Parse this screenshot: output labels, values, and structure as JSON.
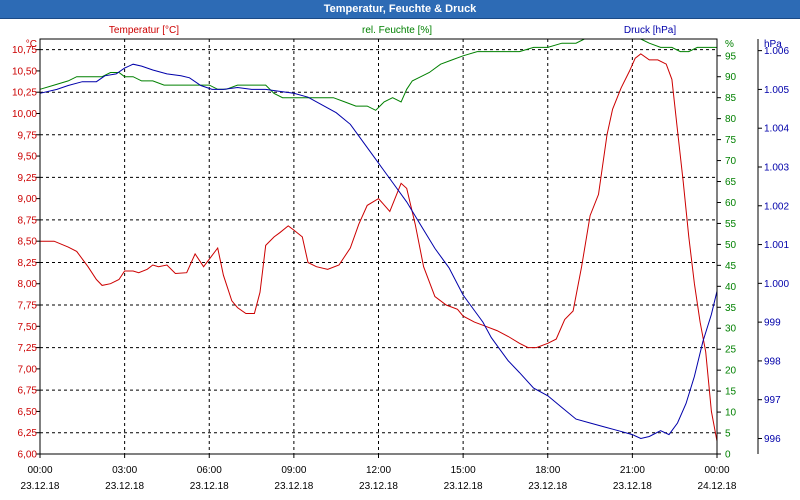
{
  "window": {
    "title": "Temperatur, Feuchte & Druck"
  },
  "colors": {
    "temperature": "#cc0000",
    "humidity": "#008000",
    "pressure": "#0000aa",
    "grid": "#000000",
    "title_bar": "#2d6bb5"
  },
  "chart_data": {
    "type": "line",
    "title": "Temperatur, Feuchte & Druck",
    "grid": true,
    "x": {
      "ticks": [
        {
          "time": "00:00",
          "date": "23.12.18"
        },
        {
          "time": "03:00",
          "date": "23.12.18"
        },
        {
          "time": "06:00",
          "date": "23.12.18"
        },
        {
          "time": "09:00",
          "date": "23.12.18"
        },
        {
          "time": "12:00",
          "date": "23.12.18"
        },
        {
          "time": "15:00",
          "date": "23.12.18"
        },
        {
          "time": "18:00",
          "date": "23.12.18"
        },
        {
          "time": "21:00",
          "date": "23.12.18"
        },
        {
          "time": "00:00",
          "date": "24.12.18"
        }
      ],
      "range_hours": [
        0,
        24
      ]
    },
    "axes": {
      "left": {
        "label": "Temperatur [°C]",
        "unit": "°C",
        "range": [
          6.0,
          10.875
        ],
        "step": 0.25,
        "decimals": 2
      },
      "right1": {
        "label": "rel. Feuchte [%]",
        "unit": "%",
        "range": [
          0,
          99
        ],
        "step": 5,
        "decimals": 0
      },
      "right2": {
        "label": "Druck [hPa]",
        "unit": "hPa",
        "range": [
          995.6,
          1006.3
        ],
        "ticks": [
          996,
          997,
          998,
          999,
          1000,
          1001,
          1002,
          1003,
          1004,
          1005,
          1006
        ],
        "tick_labels": [
          "996",
          "997",
          "998",
          "999",
          "1.000",
          "1.001",
          "1.002",
          "1.003",
          "1.004",
          "1.005",
          "1.006"
        ]
      }
    },
    "series": [
      {
        "name": "Temperatur [°C]",
        "axis": "left",
        "points": [
          [
            0,
            8.5
          ],
          [
            0.5,
            8.5
          ],
          [
            1,
            8.43
          ],
          [
            1.3,
            8.38
          ],
          [
            1.7,
            8.2
          ],
          [
            2,
            8.05
          ],
          [
            2.2,
            7.98
          ],
          [
            2.5,
            8.0
          ],
          [
            2.8,
            8.05
          ],
          [
            3,
            8.15
          ],
          [
            3.3,
            8.15
          ],
          [
            3.5,
            8.13
          ],
          [
            3.8,
            8.17
          ],
          [
            4,
            8.22
          ],
          [
            4.2,
            8.2
          ],
          [
            4.5,
            8.22
          ],
          [
            4.8,
            8.12
          ],
          [
            5.2,
            8.13
          ],
          [
            5.5,
            8.35
          ],
          [
            5.8,
            8.2
          ],
          [
            6.3,
            8.42
          ],
          [
            6.5,
            8.1
          ],
          [
            6.8,
            7.8
          ],
          [
            7,
            7.72
          ],
          [
            7.3,
            7.65
          ],
          [
            7.6,
            7.65
          ],
          [
            7.8,
            7.9
          ],
          [
            8,
            8.45
          ],
          [
            8.3,
            8.55
          ],
          [
            8.5,
            8.6
          ],
          [
            8.8,
            8.68
          ],
          [
            9,
            8.63
          ],
          [
            9.3,
            8.55
          ],
          [
            9.5,
            8.25
          ],
          [
            9.8,
            8.2
          ],
          [
            10.2,
            8.17
          ],
          [
            10.6,
            8.22
          ],
          [
            11,
            8.42
          ],
          [
            11.3,
            8.7
          ],
          [
            11.6,
            8.92
          ],
          [
            12,
            9.0
          ],
          [
            12.4,
            8.85
          ],
          [
            12.8,
            9.18
          ],
          [
            13,
            9.12
          ],
          [
            13.3,
            8.7
          ],
          [
            13.6,
            8.2
          ],
          [
            14,
            7.85
          ],
          [
            14.4,
            7.75
          ],
          [
            14.8,
            7.7
          ],
          [
            15,
            7.62
          ],
          [
            15.4,
            7.55
          ],
          [
            15.8,
            7.5
          ],
          [
            16.2,
            7.45
          ],
          [
            16.6,
            7.38
          ],
          [
            17,
            7.3
          ],
          [
            17.3,
            7.25
          ],
          [
            17.6,
            7.25
          ],
          [
            18,
            7.3
          ],
          [
            18.3,
            7.35
          ],
          [
            18.6,
            7.58
          ],
          [
            18.9,
            7.68
          ],
          [
            19.2,
            8.2
          ],
          [
            19.5,
            8.8
          ],
          [
            19.8,
            9.05
          ],
          [
            20.1,
            9.75
          ],
          [
            20.3,
            10.05
          ],
          [
            20.6,
            10.3
          ],
          [
            20.9,
            10.5
          ],
          [
            21.1,
            10.65
          ],
          [
            21.3,
            10.7
          ],
          [
            21.6,
            10.63
          ],
          [
            21.9,
            10.63
          ],
          [
            22.2,
            10.58
          ],
          [
            22.4,
            10.4
          ],
          [
            22.6,
            9.8
          ],
          [
            22.8,
            9.2
          ],
          [
            23,
            8.55
          ],
          [
            23.2,
            8.0
          ],
          [
            23.4,
            7.55
          ],
          [
            23.6,
            7.2
          ],
          [
            23.8,
            6.5
          ],
          [
            24,
            6.15
          ]
        ]
      },
      {
        "name": "rel. Feuchte [%]",
        "axis": "right1",
        "points": [
          [
            0,
            87
          ],
          [
            0.5,
            88
          ],
          [
            1,
            89
          ],
          [
            1.3,
            90
          ],
          [
            1.6,
            90
          ],
          [
            1.9,
            90
          ],
          [
            2.2,
            90
          ],
          [
            2.5,
            91
          ],
          [
            2.8,
            91
          ],
          [
            3,
            90
          ],
          [
            3.3,
            90
          ],
          [
            3.6,
            89
          ],
          [
            4,
            89
          ],
          [
            4.4,
            88
          ],
          [
            4.8,
            88
          ],
          [
            5.2,
            88
          ],
          [
            5.6,
            88
          ],
          [
            6,
            88
          ],
          [
            6.3,
            87
          ],
          [
            6.6,
            87
          ],
          [
            7,
            88
          ],
          [
            7.3,
            88
          ],
          [
            7.6,
            88
          ],
          [
            8,
            88
          ],
          [
            8.3,
            86
          ],
          [
            8.6,
            85
          ],
          [
            9,
            85
          ],
          [
            9.3,
            85
          ],
          [
            9.6,
            85
          ],
          [
            10,
            85
          ],
          [
            10.4,
            85
          ],
          [
            10.8,
            84
          ],
          [
            11.2,
            83
          ],
          [
            11.6,
            83
          ],
          [
            11.9,
            82
          ],
          [
            12.2,
            84
          ],
          [
            12.5,
            85
          ],
          [
            12.8,
            84
          ],
          [
            13,
            87
          ],
          [
            13.2,
            89
          ],
          [
            13.5,
            90
          ],
          [
            13.8,
            91
          ],
          [
            14.2,
            93
          ],
          [
            14.6,
            94
          ],
          [
            15,
            95
          ],
          [
            15.5,
            96
          ],
          [
            16,
            96
          ],
          [
            16.5,
            96
          ],
          [
            17,
            96
          ],
          [
            17.5,
            97
          ],
          [
            18,
            97
          ],
          [
            18.5,
            98
          ],
          [
            19,
            98
          ],
          [
            19.3,
            99
          ],
          [
            19.5,
            99
          ],
          [
            19.8,
            99
          ],
          [
            20.2,
            99
          ],
          [
            20.5,
            99
          ],
          [
            21,
            99
          ],
          [
            21.3,
            99
          ],
          [
            21.6,
            98
          ],
          [
            22,
            97
          ],
          [
            22.4,
            97
          ],
          [
            22.7,
            96
          ],
          [
            23,
            96
          ],
          [
            23.3,
            97
          ],
          [
            23.6,
            97
          ],
          [
            24,
            97
          ]
        ]
      },
      {
        "name": "Druck [hPa]",
        "axis": "right2",
        "points": [
          [
            0,
            1004.9
          ],
          [
            0.6,
            1005.0
          ],
          [
            1,
            1005.1
          ],
          [
            1.5,
            1005.2
          ],
          [
            2,
            1005.2
          ],
          [
            2.3,
            1005.35
          ],
          [
            2.7,
            1005.4
          ],
          [
            3,
            1005.55
          ],
          [
            3.3,
            1005.65
          ],
          [
            3.6,
            1005.6
          ],
          [
            4,
            1005.5
          ],
          [
            4.5,
            1005.4
          ],
          [
            5,
            1005.35
          ],
          [
            5.3,
            1005.3
          ],
          [
            5.7,
            1005.1
          ],
          [
            6.1,
            1005.0
          ],
          [
            6.5,
            1005.0
          ],
          [
            7,
            1005.05
          ],
          [
            7.5,
            1005.0
          ],
          [
            8,
            1005.0
          ],
          [
            8.5,
            1004.95
          ],
          [
            9,
            1004.9
          ],
          [
            9.5,
            1004.8
          ],
          [
            10,
            1004.6
          ],
          [
            10.5,
            1004.4
          ],
          [
            11,
            1004.1
          ],
          [
            11.5,
            1003.6
          ],
          [
            12,
            1003.1
          ],
          [
            12.5,
            1002.6
          ],
          [
            13,
            1002.1
          ],
          [
            13.5,
            1001.5
          ],
          [
            14,
            1000.9
          ],
          [
            14.5,
            1000.4
          ],
          [
            15,
            999.7
          ],
          [
            15.4,
            999.3
          ],
          [
            15.7,
            999.0
          ],
          [
            16,
            998.6
          ],
          [
            16.3,
            998.3
          ],
          [
            16.6,
            998.0
          ],
          [
            17,
            997.7
          ],
          [
            17.5,
            997.3
          ],
          [
            18,
            997.1
          ],
          [
            18.5,
            996.8
          ],
          [
            19,
            996.5
          ],
          [
            19.5,
            996.4
          ],
          [
            20,
            996.3
          ],
          [
            20.5,
            996.2
          ],
          [
            21,
            996.1
          ],
          [
            21.3,
            996.0
          ],
          [
            21.6,
            996.05
          ],
          [
            22,
            996.2
          ],
          [
            22.3,
            996.1
          ],
          [
            22.6,
            996.4
          ],
          [
            22.9,
            996.9
          ],
          [
            23.2,
            997.6
          ],
          [
            23.5,
            998.5
          ],
          [
            23.8,
            999.2
          ],
          [
            24,
            999.8
          ]
        ]
      }
    ]
  }
}
